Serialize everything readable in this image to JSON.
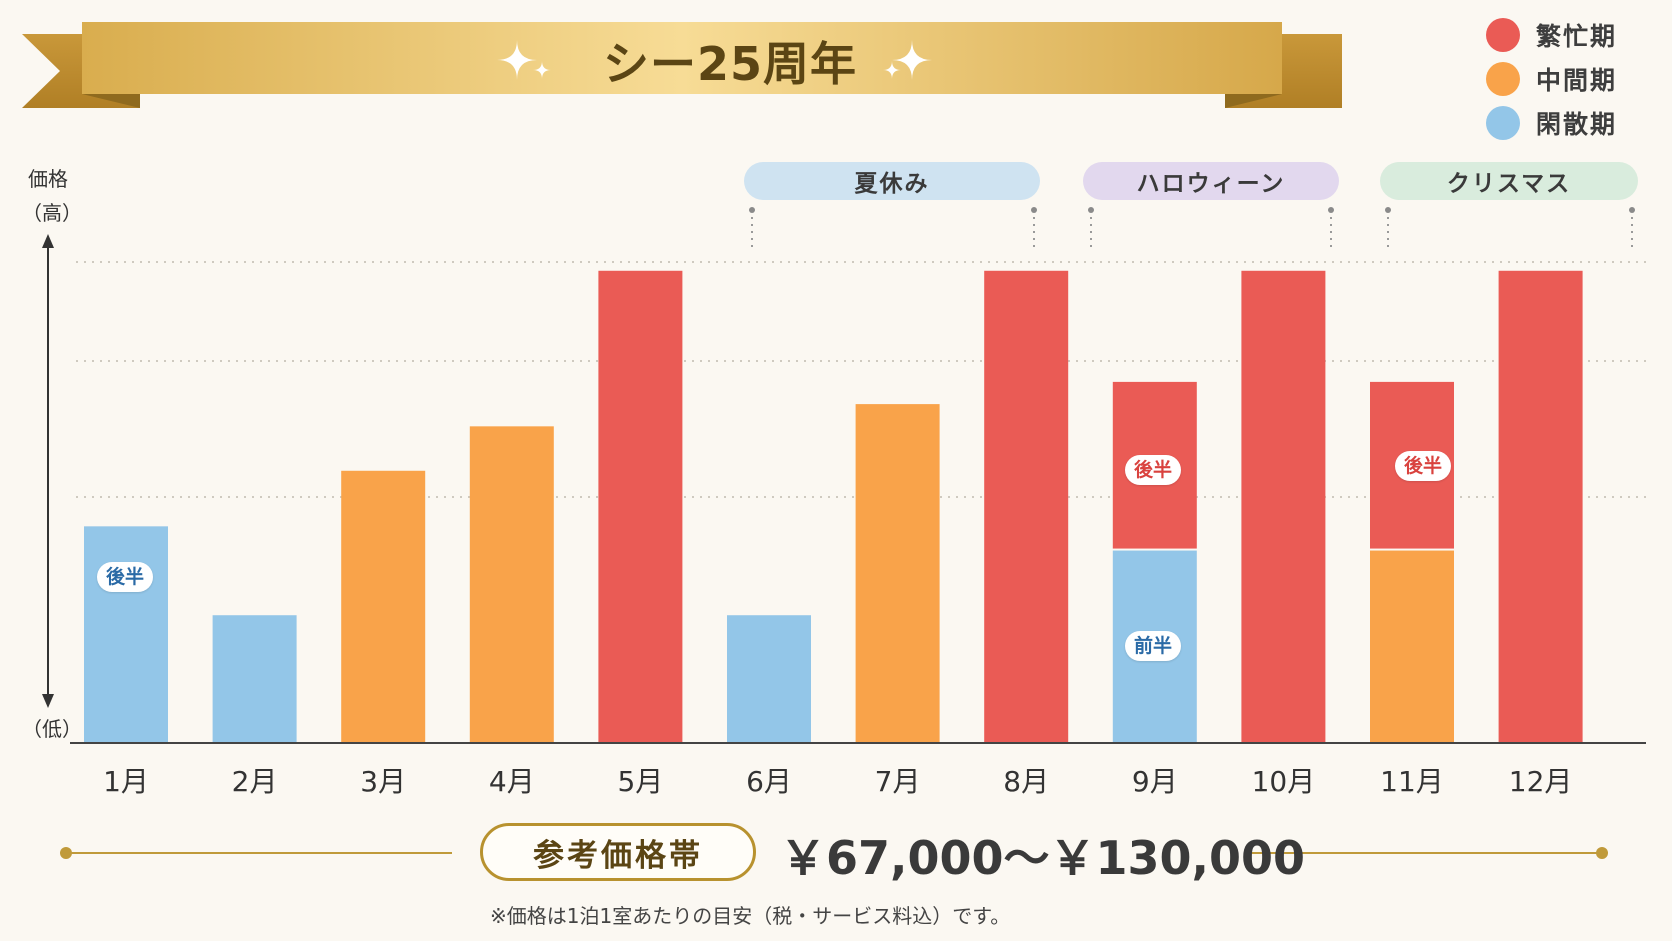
{
  "title": "シー25周年",
  "legend": [
    {
      "label": "繁忙期",
      "color": "#ea5b55"
    },
    {
      "label": "中間期",
      "color": "#f9a34a"
    },
    {
      "label": "閑散期",
      "color": "#93c6e8"
    }
  ],
  "y_axis": {
    "high_label": "価格\n（高）",
    "low_label": "（低）"
  },
  "seasons": [
    {
      "label": "夏休み",
      "bg": "#cfe3f1"
    },
    {
      "label": "ハロウィーン",
      "bg": "#e2d8ee"
    },
    {
      "label": "クリスマス",
      "bg": "#d9ecdd"
    }
  ],
  "chart_data": {
    "type": "bar",
    "title": "シー25周年",
    "ylabel": "価格",
    "ylim": [
      0,
      4.5
    ],
    "categories": [
      "1月",
      "2月",
      "3月",
      "4月",
      "5月",
      "6月",
      "7月",
      "8月",
      "9月",
      "10月",
      "11月",
      "12月"
    ],
    "values": [
      1.95,
      1.15,
      2.45,
      2.85,
      4.25,
      1.15,
      3.05,
      4.25,
      3.25,
      4.25,
      3.25,
      4.25
    ],
    "period_types": [
      "閑散期",
      "閑散期",
      "中間期",
      "中間期",
      "繁忙期",
      "閑散期",
      "中間期",
      "繁忙期",
      "閑散期→繁忙期",
      "繁忙期",
      "中間期→繁忙期",
      "繁忙期"
    ],
    "split_bars": [
      {
        "month": "9月",
        "lower": 1.75,
        "lower_period": "閑散期",
        "lower_label": "前半",
        "upper_period": "繁忙期",
        "upper_label": "後半"
      },
      {
        "month": "11月",
        "lower": 1.75,
        "lower_period": "中間期",
        "upper_period": "繁忙期",
        "upper_label": "後半"
      }
    ],
    "bar_badges": [
      {
        "month": "1月",
        "label": "後半"
      }
    ],
    "grid": true
  },
  "price_band": {
    "label": "参考価格帯",
    "range": "￥67,000～￥130,000"
  },
  "footnote": "※価格は1泊1室あたりの目安（税・サービス料込）です。"
}
